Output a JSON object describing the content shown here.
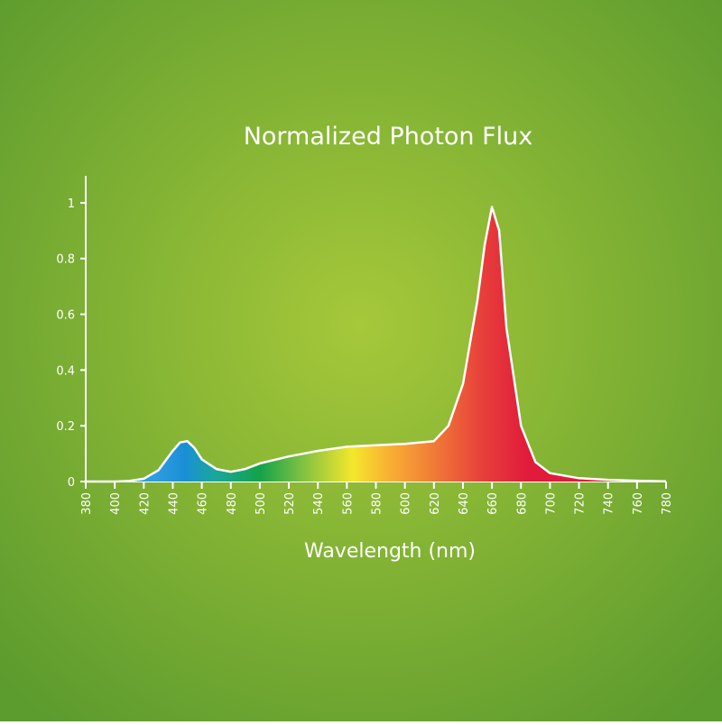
{
  "chart_data": {
    "type": "area",
    "title": "Normalized Photon Flux",
    "xlabel": "Wavelength (nm)",
    "x": [
      380,
      400,
      410,
      420,
      430,
      440,
      445,
      450,
      455,
      460,
      470,
      480,
      490,
      500,
      520,
      540,
      560,
      580,
      600,
      620,
      630,
      640,
      650,
      655,
      660,
      665,
      670,
      680,
      690,
      700,
      720,
      740,
      760,
      780
    ],
    "series": [
      {
        "color": "#ffffff",
        "values": [
          0,
          0,
          0.002,
          0.01,
          0.04,
          0.11,
          0.14,
          0.145,
          0.12,
          0.08,
          0.045,
          0.035,
          0.045,
          0.065,
          0.09,
          0.11,
          0.125,
          0.13,
          0.135,
          0.145,
          0.2,
          0.35,
          0.65,
          0.85,
          0.985,
          0.9,
          0.55,
          0.2,
          0.07,
          0.03,
          0.012,
          0.006,
          0.003,
          0.001
        ]
      }
    ],
    "xlim": [
      380,
      780
    ],
    "xticks": [
      380,
      400,
      420,
      440,
      460,
      480,
      500,
      520,
      540,
      560,
      580,
      600,
      620,
      640,
      660,
      680,
      700,
      720,
      740,
      760,
      780
    ],
    "ylim": [
      0,
      1.1
    ],
    "yticks": [
      0,
      0.2,
      0.4,
      0.6,
      0.8,
      1
    ]
  }
}
